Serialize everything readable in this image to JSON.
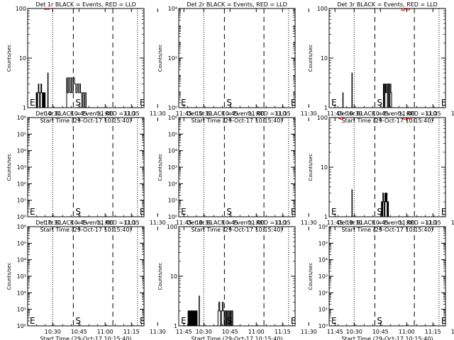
{
  "chart_data": [
    {
      "type": "line",
      "title": "Det 1r BLACK = Events, RED = LLD",
      "xlabel": "Start Time (29-Oct-17 10:15:40)",
      "ylabel": "Counts/sec",
      "x_ticks": [
        "10:30",
        "10:45",
        "11:00",
        "11:15",
        "11:30",
        "11:45"
      ],
      "x_range_minutes": [
        0,
        66.5
      ],
      "y_scale": "log",
      "y_ticks": [
        "1",
        "10",
        "100"
      ],
      "y_range": [
        1,
        100
      ],
      "markers": [
        "S",
        "E"
      ],
      "vlines": {
        "dotted": [
          14.3,
          62.8
        ],
        "dashed": [
          26.1,
          48.7
        ]
      },
      "series": [
        {
          "name": "BLACK = Events",
          "color": "#000000",
          "segments": [
            [
              [
                4.6,
                1
              ],
              [
                4.9,
                2
              ],
              [
                5.3,
                1
              ],
              [
                5.7,
                2
              ],
              [
                6.1,
                3
              ],
              [
                6.4,
                2
              ],
              [
                6.8,
                1
              ],
              [
                7.2,
                2
              ],
              [
                7.6,
                3
              ],
              [
                8.0,
                2
              ],
              [
                8.4,
                1
              ],
              [
                8.8,
                2
              ],
              [
                9.2,
                1
              ],
              [
                9.6,
                2
              ],
              [
                10.0,
                1
              ]
            ],
            [
              [
                11.3,
                1
              ],
              [
                11.5,
                5
              ],
              [
                11.7,
                1
              ]
            ],
            [
              [
                21.8,
                1
              ],
              [
                22.3,
                4
              ],
              [
                22.7,
                2
              ],
              [
                23.4,
                4
              ],
              [
                24.1,
                2
              ],
              [
                24.8,
                4
              ],
              [
                25.4,
                2
              ],
              [
                26.1,
                4
              ],
              [
                26.8,
                3
              ],
              [
                27.5,
                2
              ],
              [
                28.2,
                3
              ],
              [
                28.9,
                2
              ],
              [
                29.6,
                3
              ],
              [
                30.2,
                2
              ],
              [
                30.9,
                1
              ],
              [
                31.5,
                2
              ],
              [
                32.2,
                1
              ],
              [
                32.8,
                2
              ],
              [
                33.4,
                1
              ]
            ]
          ]
        },
        {
          "name": "RED = LLD",
          "color": "#ff0000",
          "segments": [
            [
              [
                9.0,
                100
              ],
              [
                9.8,
                95
              ],
              [
                10.6,
                100
              ],
              [
                11.4,
                96
              ],
              [
                12.2,
                100
              ]
            ]
          ]
        }
      ]
    },
    {
      "type": "line",
      "title": "Det 2r BLACK = Events, RED = LLD",
      "xlabel": "Start Time (29-Oct-17 10:15:40)",
      "ylabel": "Counts/sec",
      "x_ticks": [
        "10:30",
        "10:45",
        "11:00",
        "11:15",
        "11:30",
        "11:45"
      ],
      "x_range_minutes": [
        0,
        66.5
      ],
      "y_scale": "log",
      "y_ticks": [
        "10⁰",
        "10²",
        "10⁴"
      ],
      "y_range": [
        1,
        1000000
      ],
      "markers": [
        "S",
        "E"
      ],
      "vlines": {
        "dotted": [
          14.3,
          62.8
        ],
        "dashed": [
          26.1,
          48.7
        ]
      },
      "series": []
    },
    {
      "type": "line",
      "title": "Det 3r BLACK = Events, RED = LLD",
      "xlabel": "Start Time (29-Oct-17 10:15:40)",
      "ylabel": "Counts/sec",
      "x_ticks": [
        "10:30",
        "10:45",
        "11:00",
        "11:15",
        "11:30",
        "11:45"
      ],
      "x_range_minutes": [
        0,
        66.5
      ],
      "y_scale": "log",
      "y_ticks": [
        "1",
        "10",
        "100"
      ],
      "y_range": [
        1,
        100
      ],
      "markers": [
        "S",
        "E"
      ],
      "vlines": {
        "dotted": [
          14.3,
          62.8
        ],
        "dashed": [
          26.1,
          48.7
        ]
      },
      "series": [
        {
          "name": "BLACK = Events",
          "color": "#000000",
          "segments": [
            [
              [
                7.6,
                1
              ],
              [
                7.8,
                2
              ],
              [
                8.0,
                1
              ]
            ],
            [
              [
                12.8,
                1
              ],
              [
                13.0,
                5
              ],
              [
                13.2,
                1
              ]
            ],
            [
              [
                30.6,
                1
              ],
              [
                31.0,
                3
              ],
              [
                31.4,
                1
              ],
              [
                31.9,
                3
              ],
              [
                32.3,
                2
              ],
              [
                32.8,
                3
              ],
              [
                33.3,
                1
              ],
              [
                33.8,
                3
              ],
              [
                34.3,
                1
              ],
              [
                34.8,
                3
              ],
              [
                35.3,
                2
              ],
              [
                35.7,
                1
              ]
            ]
          ]
        },
        {
          "name": "RED = LLD",
          "color": "#ff0000",
          "segments": [
            [
              [
                40.0,
                100
              ],
              [
                41.5,
                92
              ],
              [
                43.0,
                97
              ],
              [
                44.5,
                94
              ],
              [
                46.0,
                100
              ]
            ]
          ]
        }
      ]
    },
    {
      "type": "line",
      "title": "Det 4r BLACK = Events, RED = LLD",
      "xlabel": "Start Time (29-Oct-17 10:15:40)",
      "ylabel": "Counts/sec",
      "x_ticks": [
        "10:30",
        "10:45",
        "11:00",
        "11:15",
        "11:30",
        "11:45"
      ],
      "x_range_minutes": [
        0,
        66.5
      ],
      "y_scale": "log",
      "y_ticks": [
        "10⁰",
        "10¹",
        "10²",
        "10³",
        "10⁴",
        "10⁵",
        "10⁶"
      ],
      "y_range": [
        1,
        1000000
      ],
      "markers": [
        "S",
        "E"
      ],
      "vlines": {
        "dotted": [
          14.3,
          62.8
        ],
        "dashed": [
          26.1,
          48.7
        ]
      },
      "series": []
    },
    {
      "type": "line",
      "title": "Det 5r BLACK = Events, RED = LLD",
      "xlabel": "Start Time (29-Oct-17 10:15:40)",
      "ylabel": "Counts/sec",
      "x_ticks": [
        "10:30",
        "10:45",
        "11:00",
        "11:15",
        "11:30",
        "11:45"
      ],
      "x_range_minutes": [
        0,
        66.5
      ],
      "y_scale": "log",
      "y_ticks": [
        "10⁰",
        "10¹",
        "10²",
        "10³",
        "10⁴",
        "10⁵",
        "10⁶"
      ],
      "y_range": [
        1,
        1000000
      ],
      "markers": [
        "S",
        "E"
      ],
      "vlines": {
        "dotted": [
          14.3,
          62.8
        ],
        "dashed": [
          26.1,
          48.7
        ]
      },
      "series": []
    },
    {
      "type": "line",
      "title": "Det 6r BLACK = Events, RED = LLD",
      "xlabel": "Start Time (29-Oct-17 10:15:40)",
      "ylabel": "Counts/sec",
      "x_ticks": [
        "10:30",
        "10:45",
        "11:00",
        "11:15",
        "11:30",
        "11:45"
      ],
      "x_range_minutes": [
        0,
        66.5
      ],
      "y_scale": "log",
      "y_ticks": [
        "1",
        "10",
        "100"
      ],
      "y_range": [
        1,
        100
      ],
      "markers": [
        "S",
        "E"
      ],
      "vlines": {
        "dotted": [
          14.3,
          62.8
        ],
        "dashed": [
          26.1,
          48.7
        ]
      },
      "series": [
        {
          "name": "BLACK = Events",
          "color": "#000000",
          "segments": [
            [
              [
                12.8,
                1
              ],
              [
                13.0,
                3.5
              ],
              [
                13.2,
                1
              ]
            ],
            [
              [
                29.6,
                1
              ],
              [
                29.9,
                2
              ],
              [
                30.3,
                1
              ],
              [
                30.7,
                3
              ],
              [
                31.1,
                2
              ],
              [
                31.5,
                1
              ],
              [
                31.9,
                3
              ],
              [
                32.3,
                2
              ],
              [
                32.7,
                3
              ],
              [
                33.1,
                1
              ],
              [
                33.5,
                2
              ],
              [
                33.9,
                1
              ]
            ]
          ]
        },
        {
          "name": "RED = LLD",
          "color": "#ff0000",
          "segments": [
            [
              [
                4.5,
                100
              ],
              [
                5.5,
                95
              ],
              [
                6.5,
                92
              ],
              [
                7.5,
                96
              ],
              [
                8.5,
                100
              ]
            ],
            [
              [
                41.0,
                100
              ],
              [
                42.5,
                93
              ],
              [
                44.0,
                96
              ],
              [
                45.5,
                94
              ],
              [
                47.0,
                100
              ]
            ]
          ]
        }
      ]
    },
    {
      "type": "line",
      "title": "Det 7r BLACK = Events, RED = LLD",
      "xlabel": "Start Time (29-Oct-17 10:15:40)",
      "ylabel": "Counts/sec",
      "x_ticks": [
        "10:30",
        "10:45",
        "11:00",
        "11:15",
        "11:30",
        "11:45"
      ],
      "x_range_minutes": [
        0,
        66.5
      ],
      "y_scale": "log",
      "y_ticks": [
        "10⁰",
        "10¹",
        "10²",
        "10³",
        "10⁴",
        "10⁵",
        "10⁶"
      ],
      "y_range": [
        1,
        1000000
      ],
      "markers": [
        "S",
        "E"
      ],
      "vlines": {
        "dotted": [
          14.3,
          62.8
        ],
        "dashed": [
          26.1,
          48.7
        ]
      },
      "series": []
    },
    {
      "type": "line",
      "title": "Det 8r BLACK = Events, RED = LLD",
      "xlabel": "Start Time (29-Oct-17 10:15:40)",
      "ylabel": "Counts/sec",
      "x_ticks": [
        "10:30",
        "10:45",
        "11:00",
        "11:15",
        "11:30",
        "11:45"
      ],
      "x_range_minutes": [
        0,
        66.5
      ],
      "y_scale": "log",
      "y_ticks": [
        "1",
        "10",
        "100"
      ],
      "y_range": [
        1,
        100
      ],
      "markers": [
        "S",
        "E"
      ],
      "vlines": {
        "dotted": [
          14.3,
          62.8
        ],
        "dashed": [
          26.1,
          48.7
        ]
      },
      "series": [
        {
          "name": "BLACK = Events",
          "color": "#000000",
          "segments": [
            [
              [
                5.0,
                1
              ],
              [
                5.3,
                2
              ],
              [
                5.7,
                1
              ],
              [
                6.1,
                2
              ],
              [
                6.5,
                1
              ],
              [
                6.9,
                2
              ],
              [
                7.3,
                1
              ],
              [
                7.7,
                2
              ],
              [
                8.1,
                1
              ],
              [
                8.5,
                2
              ],
              [
                8.9,
                1
              ],
              [
                9.3,
                2
              ],
              [
                9.7,
                1
              ],
              [
                10.1,
                2
              ],
              [
                10.5,
                1
              ]
            ],
            [
              [
                11.4,
                1
              ],
              [
                11.6,
                4
              ],
              [
                11.8,
                1
              ]
            ],
            [
              [
                22.0,
                1
              ],
              [
                22.4,
                2
              ],
              [
                22.9,
                3
              ],
              [
                23.4,
                2
              ],
              [
                23.9,
                1
              ],
              [
                24.4,
                2
              ],
              [
                24.9,
                3
              ],
              [
                25.4,
                2
              ],
              [
                25.9,
                1
              ],
              [
                26.4,
                2
              ],
              [
                26.9,
                1
              ],
              [
                27.4,
                2
              ],
              [
                27.9,
                1
              ],
              [
                28.4,
                2
              ],
              [
                28.9,
                1
              ],
              [
                29.4,
                2
              ],
              [
                29.9,
                1
              ],
              [
                30.4,
                2
              ],
              [
                30.9,
                1
              ]
            ]
          ]
        }
      ]
    },
    {
      "type": "line",
      "title": "Det 9r BLACK = Events, RED = LLD",
      "xlabel": "Start Time (29-Oct-17 10:15:40)",
      "ylabel": "Counts/sec",
      "x_ticks": [
        "10:30",
        "10:45",
        "11:00",
        "11:15",
        "11:30",
        "11:45"
      ],
      "x_range_minutes": [
        0,
        66.5
      ],
      "y_scale": "log",
      "y_ticks": [
        "10⁰",
        "10¹",
        "10²",
        "10³",
        "10⁴",
        "10⁵",
        "10⁶"
      ],
      "y_range": [
        1,
        1000000
      ],
      "markers": [
        "S",
        "E"
      ],
      "vlines": {
        "dotted": [
          14.3,
          62.8
        ],
        "dashed": [
          26.1,
          48.7
        ]
      },
      "series": []
    }
  ]
}
